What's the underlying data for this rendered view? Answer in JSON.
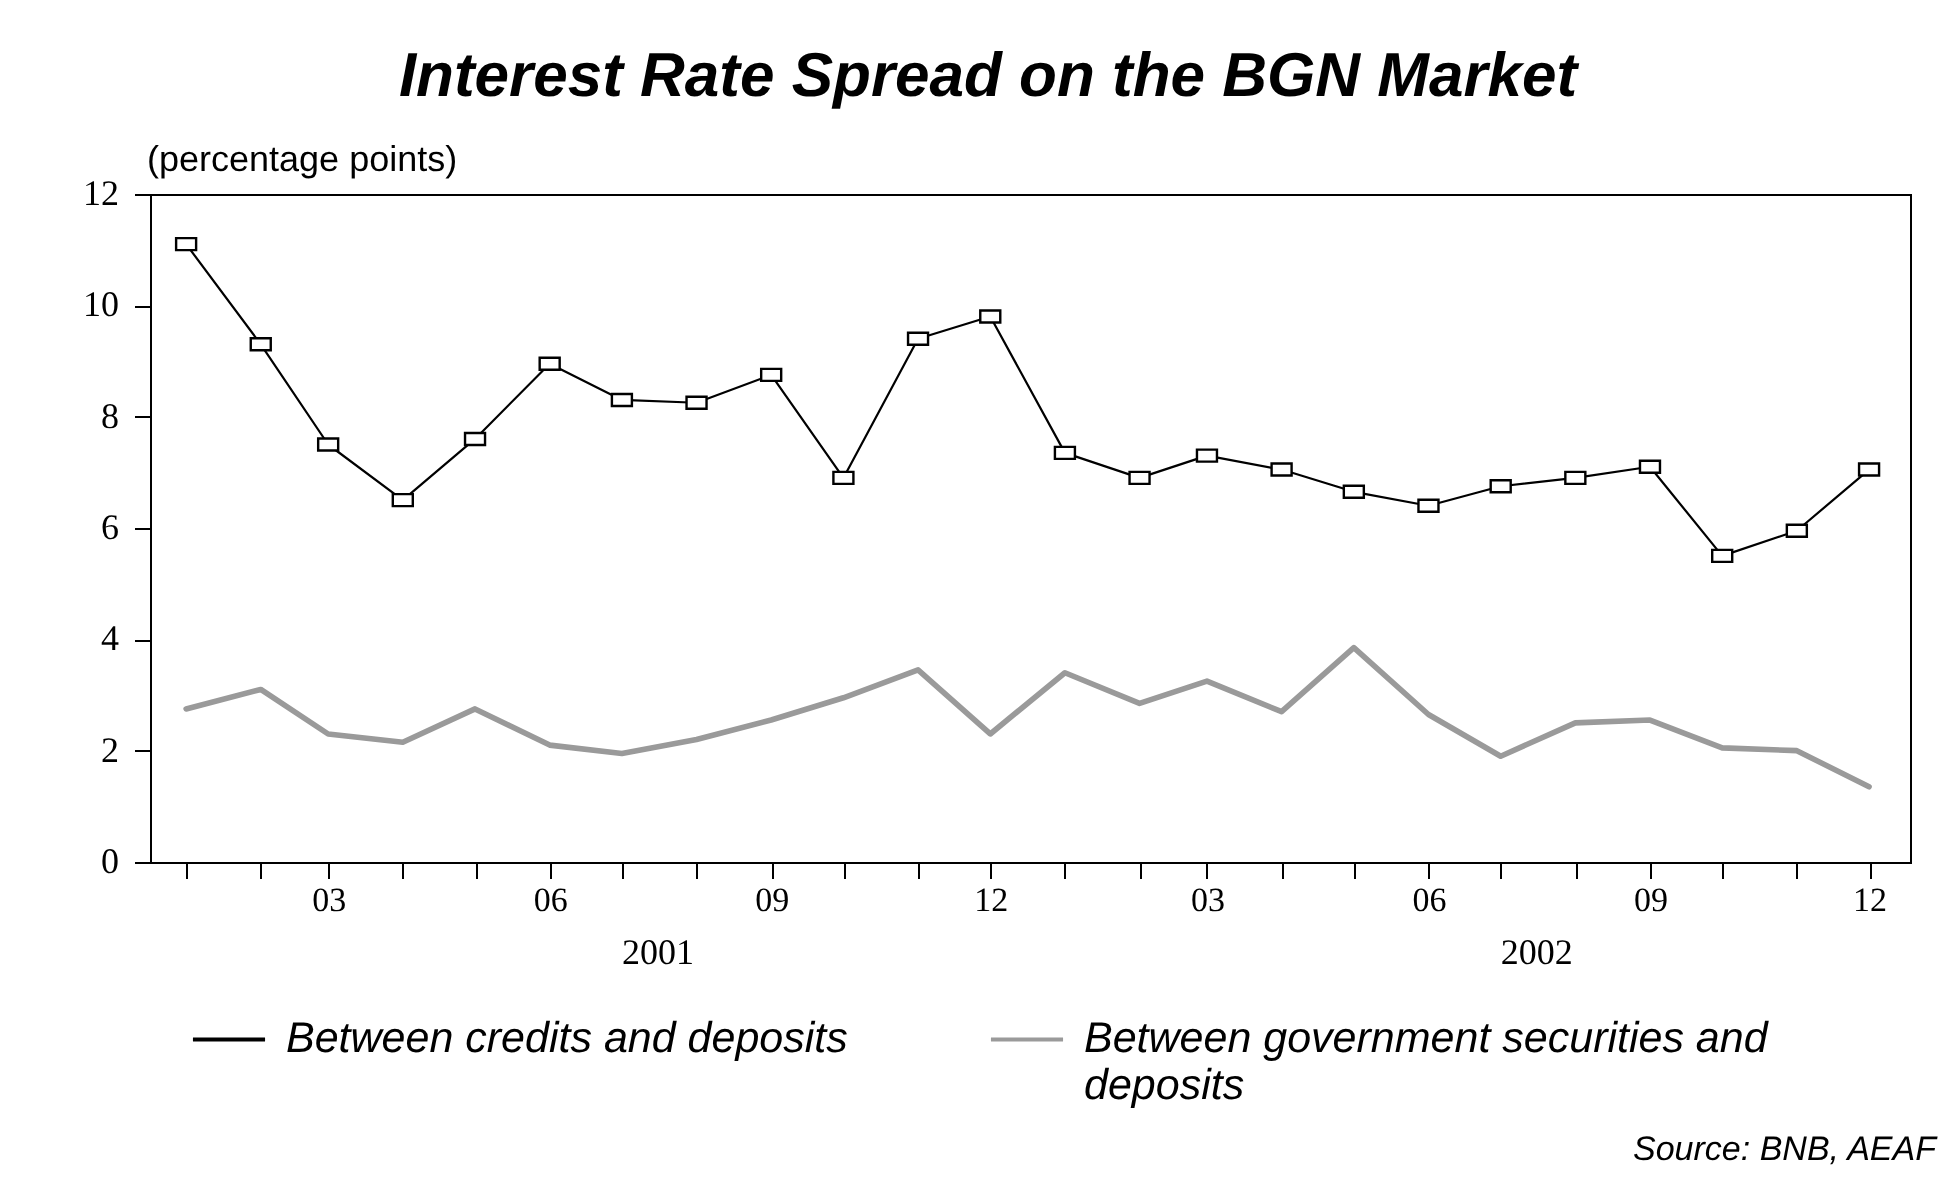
{
  "chart_data": {
    "type": "line",
    "title": "Interest Rate Spread on the BGN Market",
    "ylabel": "(percentage points)",
    "x": [
      "2001-01",
      "2001-02",
      "2001-03",
      "2001-04",
      "2001-05",
      "2001-06",
      "2001-07",
      "2001-08",
      "2001-09",
      "2001-10",
      "2001-11",
      "2001-12",
      "2002-01",
      "2002-02",
      "2002-03",
      "2002-04",
      "2002-05",
      "2002-06",
      "2002-07",
      "2002-08",
      "2002-09",
      "2002-10",
      "2002-11",
      "2002-12"
    ],
    "series": [
      {
        "name": "Between credits and deposits",
        "color": "#000000",
        "marker": "square",
        "line_style": "solid",
        "values": [
          11.1,
          9.3,
          7.5,
          6.5,
          7.6,
          8.95,
          8.3,
          8.25,
          8.75,
          6.9,
          9.4,
          9.8,
          7.35,
          6.9,
          7.3,
          7.05,
          6.65,
          6.4,
          6.75,
          6.9,
          7.1,
          5.5,
          5.95,
          7.05
        ]
      },
      {
        "name": "Between government securities and deposits",
        "color": "#9a9a9a",
        "marker": "none",
        "line_style": "solid",
        "values": [
          2.75,
          3.1,
          2.3,
          2.15,
          2.75,
          2.1,
          1.95,
          2.2,
          2.55,
          2.95,
          3.45,
          2.3,
          3.4,
          2.85,
          3.25,
          2.7,
          3.85,
          2.65,
          1.9,
          2.5,
          2.55,
          2.05,
          2.0,
          1.35
        ]
      }
    ],
    "xlim": [
      "2000-12-17",
      "2002-12-18"
    ],
    "xticks": [
      {
        "value": "2001-01",
        "label": null
      },
      {
        "value": "2001-02",
        "label": null
      },
      {
        "value": "2001-03",
        "label": "03"
      },
      {
        "value": "2001-04",
        "label": null
      },
      {
        "value": "2001-05",
        "label": null
      },
      {
        "value": "2001-06",
        "label": "06"
      },
      {
        "value": "2001-07",
        "label": null
      },
      {
        "value": "2001-08",
        "label": null
      },
      {
        "value": "2001-09",
        "label": "09"
      },
      {
        "value": "2001-10",
        "label": null
      },
      {
        "value": "2001-11",
        "label": null
      },
      {
        "value": "2001-12",
        "label": "12"
      },
      {
        "value": "2002-01",
        "label": null
      },
      {
        "value": "2002-02",
        "label": null
      },
      {
        "value": "2002-03",
        "label": "03"
      },
      {
        "value": "2002-04",
        "label": null
      },
      {
        "value": "2002-05",
        "label": null
      },
      {
        "value": "2002-06",
        "label": "06"
      },
      {
        "value": "2002-07",
        "label": null
      },
      {
        "value": "2002-08",
        "label": null
      },
      {
        "value": "2002-09",
        "label": "09"
      },
      {
        "value": "2002-10",
        "label": null
      },
      {
        "value": "2002-11",
        "label": null
      },
      {
        "value": "2002-12",
        "label": "12"
      }
    ],
    "x2lim": [
      "2000-12-17",
      "2002-12-18"
    ],
    "x2ticks": [
      {
        "value": "2001-07-16",
        "label": "2001"
      },
      {
        "value": "2002-07-16",
        "label": "2002"
      }
    ],
    "ylim": [
      0,
      12
    ],
    "yticks": [
      0,
      2,
      4,
      6,
      8,
      10,
      12
    ],
    "legend": "bottom",
    "annotations": [
      "Source: BNB, AEAF"
    ]
  }
}
